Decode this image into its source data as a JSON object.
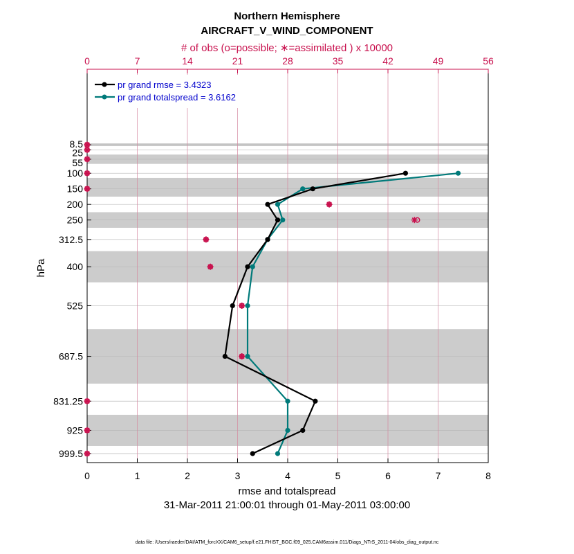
{
  "chart_data": {
    "type": "line",
    "title": "Northern Hemisphere",
    "subtitle": "AIRCRAFT_V_WIND_COMPONENT",
    "top_axis_label": "# of obs (o=possible; ∗=assimilated ) x 10000",
    "xlabel": "rmse and totalspread",
    "ylabel": "hPa",
    "date_range": "31-Mar-2011 21:00:01 through 01-May-2011 03:00:00",
    "footnote": "data file: /Users/raeder/DAI/ATM_forcXX/CAM6_setup/f.e21.FHIST_BGC.f09_025.CAM6assim.011/Diags_NTrS_2011-04/obs_diag_output.nc",
    "xlim": [
      0,
      8
    ],
    "x_ticks": [
      "0",
      "1",
      "2",
      "3",
      "4",
      "5",
      "6",
      "7",
      "8"
    ],
    "top_xlim": [
      0,
      56
    ],
    "top_ticks": [
      "0",
      "7",
      "14",
      "21",
      "28",
      "35",
      "42",
      "49",
      "56"
    ],
    "levels": [
      8.5,
      25,
      55,
      100,
      150,
      200,
      250,
      312.5,
      400,
      525,
      687.5,
      831.25,
      925,
      999.5
    ],
    "level_labels": [
      "8.5",
      "25",
      "55",
      "100",
      "150",
      "200",
      "250",
      "312.5",
      "400",
      "525",
      "687.5",
      "831.25",
      "925",
      "999.5"
    ],
    "shaded_bands": [
      [
        4,
        13
      ],
      [
        40,
        70
      ],
      [
        115,
        175
      ],
      [
        225,
        275
      ],
      [
        350,
        450
      ],
      [
        600,
        775
      ],
      [
        875,
        975
      ]
    ],
    "series": [
      {
        "name": "pr grand rmse",
        "legend": "pr grand rmse = 3.4323",
        "color": "#000000",
        "levels": [
          100,
          150,
          200,
          250,
          312.5,
          400,
          525,
          687.5,
          831.25,
          925,
          999.5
        ],
        "values": [
          6.35,
          4.5,
          3.6,
          3.8,
          3.6,
          3.2,
          2.9,
          2.75,
          4.55,
          4.3,
          3.3
        ]
      },
      {
        "name": "pr grand totalspread",
        "legend": "pr grand totalspread = 3.6162",
        "color": "#007a7a",
        "levels": [
          100,
          150,
          200,
          250,
          312.5,
          400,
          525,
          687.5,
          831.25,
          925,
          999.5
        ],
        "values": [
          7.4,
          4.3,
          3.8,
          3.9,
          3.6,
          3.3,
          3.2,
          3.2,
          4.0,
          4.0,
          3.8
        ]
      }
    ],
    "obs_possible": {
      "levels": [
        8.5,
        25,
        55,
        100,
        150,
        200,
        250,
        312.5,
        400,
        525,
        687.5,
        831.25,
        925,
        999.5
      ],
      "values": [
        0,
        0,
        0,
        0,
        0,
        33.8,
        46.1,
        16.6,
        17.2,
        21.6,
        21.6,
        0,
        0,
        0
      ]
    },
    "obs_assimilated": {
      "levels": [
        8.5,
        25,
        55,
        100,
        150,
        200,
        250,
        312.5,
        400,
        525,
        687.5,
        831.25,
        925,
        999.5
      ],
      "values": [
        0,
        0,
        0,
        0,
        0,
        33.8,
        45.7,
        16.6,
        17.2,
        21.6,
        21.6,
        0,
        0,
        0
      ]
    }
  }
}
